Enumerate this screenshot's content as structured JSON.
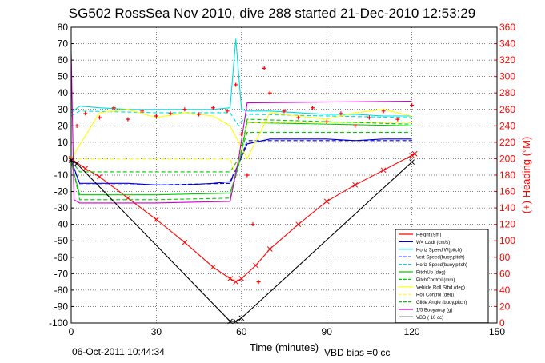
{
  "chart_data": {
    "type": "line",
    "title": "SG502 RossSea Nov 2010, dive 288 started 21-Dec-2010 12:53:29",
    "xlabel": "Time (minutes)",
    "ylabel_right": "(+) Heading (°M)",
    "xlim": [
      0,
      150
    ],
    "ylim": [
      -100,
      80
    ],
    "ylim_right": [
      0,
      360
    ],
    "xticks": [
      0,
      30,
      60,
      90,
      120,
      150
    ],
    "yticks": [
      80,
      70,
      60,
      50,
      40,
      30,
      20,
      10,
      0,
      -10,
      -20,
      -30,
      -40,
      -50,
      -60,
      -70,
      -80,
      -90,
      -100
    ],
    "yticks_right": [
      360,
      340,
      320,
      300,
      280,
      260,
      240,
      220,
      200,
      180,
      160,
      140,
      120,
      100,
      80,
      60,
      40,
      20,
      0
    ],
    "grid": true,
    "legend_position": "bottom-right",
    "footer_left": "06-Oct-2011 10:44:34",
    "footer_right": "VBD bias =0 cc",
    "colors": {
      "depth": "#ff0000",
      "heading": "#ff0000",
      "w": "#0000cd",
      "horiz_speed": "#00dcdc",
      "vert_speed_buoy": "#0000cd",
      "horiz_speed_buoy": "#00dcdc",
      "pitch_up": "#00cc00",
      "pitch_control": "#00cc00",
      "roll_stbd": "#ffff00",
      "roll_control": "#ffff00",
      "glide_angle": "#00cc00",
      "buoyancy": "#cc00cc",
      "vbd": "#000000"
    },
    "legend": [
      {
        "label": "Height (9m)",
        "color": "#ff0000",
        "dash": false
      },
      {
        "label": "W= dz/dt (cm/s)",
        "color": "#0000cd",
        "dash": false
      },
      {
        "label": "Horiz Speed W(pitch)",
        "color": "#00dcdc",
        "dash": false
      },
      {
        "label": "Vert Speed(buoy,pitch)",
        "color": "#0000cd",
        "dash": true
      },
      {
        "label": "Horiz Speed(buoy,pitch)",
        "color": "#00dcdc",
        "dash": true
      },
      {
        "label": "PitchUp (deg)",
        "color": "#00cc00",
        "dash": false
      },
      {
        "label": "PitchControl (mm)",
        "color": "#00cc00",
        "dash": true
      },
      {
        "label": "Vehicle Roll Stbd (deg)",
        "color": "#ffff00",
        "dash": false
      },
      {
        "label": "Roll Control (deg)",
        "color": "#ffff00",
        "dash": true
      },
      {
        "label": "Glide Angle (buoy,pitch)",
        "color": "#00cc00",
        "dash": true
      },
      {
        "label": "1/5 Buoyancy (g)",
        "color": "#cc00cc",
        "dash": false
      },
      {
        "label": "VBD ( 10 cc)",
        "color": "#000000",
        "dash": false
      }
    ],
    "series": [
      {
        "name": "Height (9m)",
        "x": [
          0,
          5,
          10,
          20,
          30,
          40,
          50,
          56,
          58,
          60,
          65,
          70,
          80,
          90,
          100,
          110,
          120,
          121
        ],
        "y": [
          0,
          -6,
          -11,
          -24,
          -37,
          -51,
          -66,
          -73,
          -75,
          -73,
          -65,
          -55,
          -40,
          -26,
          -16,
          -7,
          2,
          3
        ]
      },
      {
        "name": "W= dz/dt (cm/s)",
        "x": [
          0,
          3,
          10,
          20,
          30,
          40,
          50,
          56,
          59,
          62,
          70,
          80,
          90,
          100,
          110,
          120
        ],
        "y": [
          -1,
          -15,
          -15,
          -15,
          -16,
          -16,
          -15,
          -14,
          -3,
          9,
          12,
          12,
          12,
          11,
          12,
          12
        ]
      },
      {
        "name": "Horiz Speed W(pitch)",
        "x": [
          0,
          3,
          10,
          20,
          30,
          40,
          50,
          56,
          58,
          60,
          62,
          70,
          80,
          90,
          100,
          110,
          120
        ],
        "y": [
          28,
          32,
          31,
          30,
          30,
          30,
          30,
          31,
          73,
          30,
          29,
          29,
          28,
          27,
          27,
          26,
          26
        ]
      },
      {
        "name": "Vert Speed(buoy,pitch)",
        "x": [
          0,
          3,
          30,
          56,
          59,
          62,
          120
        ],
        "y": [
          -1,
          -16,
          -16,
          -15,
          -3,
          11,
          11
        ]
      },
      {
        "name": "Horiz Speed(buoy,pitch)",
        "x": [
          0,
          3,
          30,
          56,
          59,
          62,
          120
        ],
        "y": [
          26,
          29,
          28,
          28,
          20,
          27,
          25
        ]
      },
      {
        "name": "PitchUp (deg)",
        "x": [
          0,
          3,
          30,
          56,
          59,
          62,
          120
        ],
        "y": [
          -2,
          -22,
          -22,
          -21,
          -4,
          22,
          20
        ]
      },
      {
        "name": "PitchControl (mm)",
        "x": [
          0,
          3,
          30,
          56,
          59,
          62,
          120
        ],
        "y": [
          -1,
          -8,
          -8,
          -8,
          0,
          16,
          16
        ]
      },
      {
        "name": "Vehicle Roll Stbd (deg)",
        "x": [
          0,
          10,
          20,
          30,
          40,
          50,
          56,
          62,
          70,
          80,
          90,
          100,
          110,
          120
        ],
        "y": [
          0,
          28,
          30,
          25,
          28,
          26,
          20,
          0,
          28,
          26,
          24,
          28,
          30,
          26
        ]
      },
      {
        "name": "Roll Control (deg)",
        "x": [
          0,
          56,
          58,
          62,
          120
        ],
        "y": [
          0,
          0,
          -10,
          22,
          22
        ]
      },
      {
        "name": "Glide Angle (buoy,pitch)",
        "x": [
          0,
          3,
          30,
          56,
          59,
          62,
          120
        ],
        "y": [
          -1,
          -25,
          -25,
          -24,
          -4,
          24,
          21
        ]
      },
      {
        "name": "1/5 Buoyancy (g)",
        "x": [
          0,
          1,
          3,
          30,
          56,
          59,
          62,
          120
        ],
        "y": [
          65,
          -25,
          -27,
          -27,
          -26,
          0,
          34,
          35
        ]
      },
      {
        "name": "VBD ( 10 cc)",
        "x": [
          0,
          2,
          56,
          58,
          60,
          120
        ],
        "y": [
          -1,
          -3,
          -99,
          -99,
          -97,
          -2
        ]
      },
      {
        "name": "(+) Heading (°M)",
        "axis": "right",
        "x": [
          2,
          5,
          10,
          15,
          20,
          25,
          30,
          35,
          40,
          45,
          50,
          55,
          58,
          60,
          62,
          64,
          66,
          68,
          70,
          75,
          80,
          85,
          90,
          95,
          100,
          105,
          110,
          115,
          120
        ],
        "y": [
          240,
          255,
          250,
          262,
          248,
          258,
          252,
          255,
          260,
          254,
          262,
          258,
          290,
          230,
          180,
          120,
          50,
          310,
          280,
          258,
          250,
          262,
          245,
          255,
          240,
          250,
          258,
          248,
          265
        ]
      }
    ]
  }
}
